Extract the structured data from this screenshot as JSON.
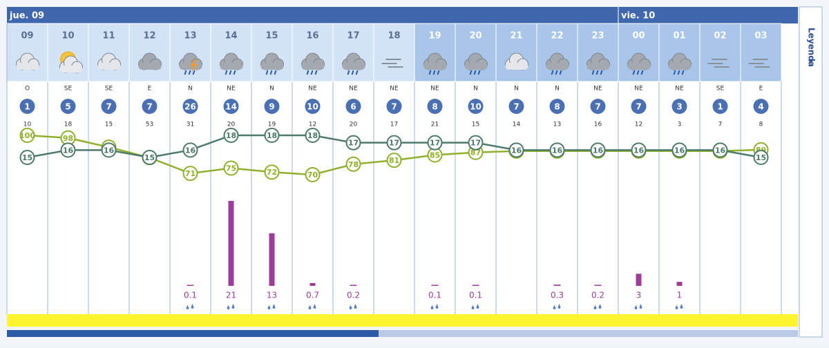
{
  "days": [
    {
      "label": "jue. 09"
    },
    {
      "label": "vie. 10"
    }
  ],
  "legend": "Leyenda",
  "hours": [
    "09",
    "10",
    "11",
    "12",
    "13",
    "14",
    "15",
    "16",
    "17",
    "18",
    "19",
    "20",
    "21",
    "22",
    "23",
    "00",
    "01",
    "02",
    "03"
  ],
  "wind_dir": [
    "O",
    "SE",
    "SE",
    "E",
    "N",
    "NE",
    "N",
    "NE",
    "NE",
    "NE",
    "NE",
    "N",
    "N",
    "N",
    "NE",
    "NE",
    "NE",
    "SE",
    "E"
  ],
  "wind_speed": [
    1,
    5,
    7,
    7,
    26,
    14,
    9,
    10,
    6,
    7,
    8,
    10,
    7,
    8,
    7,
    7,
    3,
    1,
    4
  ],
  "gust": [
    10,
    18,
    15,
    53,
    31,
    20,
    19,
    12,
    20,
    17,
    21,
    15,
    14,
    13,
    16,
    12,
    3,
    7,
    8
  ],
  "temperature": [
    15,
    16,
    16,
    15,
    16,
    18,
    18,
    18,
    17,
    17,
    17,
    17,
    16,
    16,
    16,
    16,
    16,
    16,
    15
  ],
  "humidity": [
    100,
    98,
    91,
    83,
    71,
    75,
    72,
    70,
    78,
    81,
    85,
    87,
    88,
    88,
    88,
    88,
    88,
    88,
    89
  ],
  "precipitation": [
    null,
    null,
    null,
    null,
    0.1,
    21,
    13,
    0.7,
    0.2,
    null,
    0.1,
    0.1,
    null,
    0.3,
    0.2,
    3,
    1,
    null,
    null
  ]
}
